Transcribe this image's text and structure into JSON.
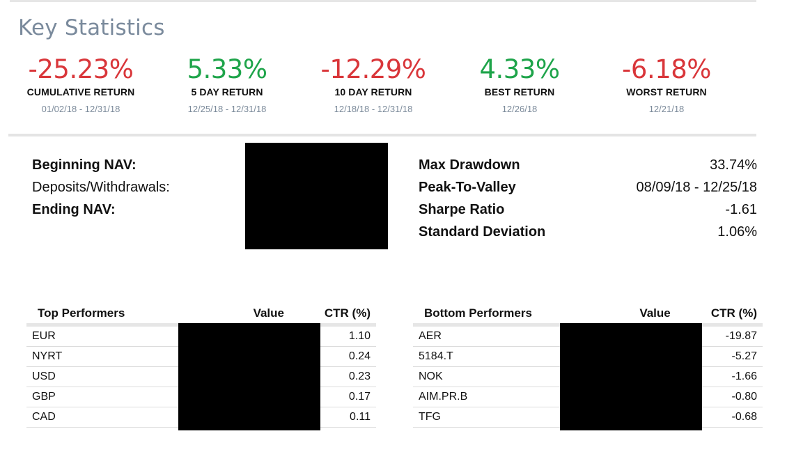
{
  "title": "Key Statistics",
  "colors": {
    "positive": "#1ea44a",
    "negative": "#d9363a",
    "title": "#7a8a9c"
  },
  "stats": [
    {
      "value": "-25.23%",
      "label": "CUMULATIVE RETURN",
      "date": "01/02/18 - 12/31/18",
      "sentiment": "negative"
    },
    {
      "value": "5.33%",
      "label": "5 DAY RETURN",
      "date": "12/25/18 - 12/31/18",
      "sentiment": "positive"
    },
    {
      "value": "-12.29%",
      "label": "10 DAY RETURN",
      "date": "12/18/18 - 12/31/18",
      "sentiment": "negative"
    },
    {
      "value": "4.33%",
      "label": "BEST RETURN",
      "date": "12/26/18",
      "sentiment": "positive"
    },
    {
      "value": "-6.18%",
      "label": "WORST RETURN",
      "date": "12/21/18",
      "sentiment": "negative"
    }
  ],
  "nav": {
    "beginning_label": "Beginning NAV:",
    "deposits_label": "Deposits/Withdrawals:",
    "ending_label": "Ending NAV:"
  },
  "risk": [
    {
      "label": "Max Drawdown",
      "value": "33.74%"
    },
    {
      "label": "Peak-To-Valley",
      "value": "08/09/18 - 12/25/18"
    },
    {
      "label": "Sharpe Ratio",
      "value": "-1.61"
    },
    {
      "label": "Standard Deviation",
      "value": "1.06%"
    }
  ],
  "top_performers": {
    "headers": {
      "name": "Top Performers",
      "value": "Value",
      "ctr": "CTR (%)"
    },
    "rows": [
      {
        "name": "EUR",
        "ctr": "1.10"
      },
      {
        "name": "NYRT",
        "ctr": "0.24"
      },
      {
        "name": "USD",
        "ctr": "0.23"
      },
      {
        "name": "GBP",
        "ctr": "0.17"
      },
      {
        "name": "CAD",
        "ctr": "0.11"
      }
    ]
  },
  "bottom_performers": {
    "headers": {
      "name": "Bottom Performers",
      "value": "Value",
      "ctr": "CTR (%)"
    },
    "rows": [
      {
        "name": "AER",
        "ctr": "-19.87"
      },
      {
        "name": "5184.T",
        "ctr": "-5.27"
      },
      {
        "name": "NOK",
        "ctr": "-1.66"
      },
      {
        "name": "AIM.PR.B",
        "ctr": "-0.80"
      },
      {
        "name": "TFG",
        "ctr": "-0.68"
      }
    ]
  }
}
